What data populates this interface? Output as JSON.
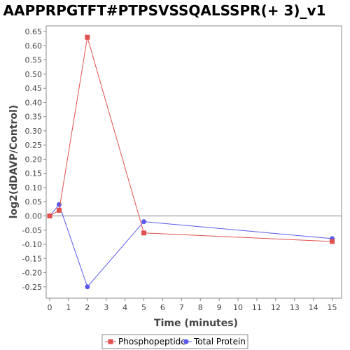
{
  "chart_data": {
    "type": "line",
    "title": "AAPPRPGTFT#PTPSVSSQALSSPR(+ 3)_v1",
    "xlabel": "Time (minutes)",
    "ylabel": "log2(dDAVP/Control)",
    "xlim": [
      0,
      15.5
    ],
    "ylim": [
      -0.29,
      0.67
    ],
    "xticks": [
      0,
      1,
      2,
      3,
      4,
      5,
      6,
      7,
      8,
      9,
      10,
      11,
      12,
      13,
      14,
      15
    ],
    "yticks": [
      0.65,
      0.6,
      0.55,
      0.5,
      0.45,
      0.4,
      0.35,
      0.3,
      0.25,
      0.2,
      0.15,
      0.1,
      0.05,
      0.0,
      -0.05,
      -0.1,
      -0.15,
      -0.2,
      -0.25
    ],
    "ytick_labels": [
      "0.65",
      "0.60",
      "0.55",
      "0.50",
      "0.45",
      "0.40",
      "0.35",
      "0.30",
      "0.25",
      "0.20",
      "0.15",
      "0.10",
      "0.05",
      "0.00",
      "-0.05",
      "-0.10",
      "-0.15",
      "-0.20",
      "-0.25"
    ],
    "grid": false,
    "legend_position": "bottom",
    "zero_line": true,
    "series": [
      {
        "name": "Phosphopeptide",
        "color": "#e05050",
        "marker": "square",
        "x": [
          0,
          0.5,
          2,
          5,
          15
        ],
        "y": [
          0.0,
          0.02,
          0.63,
          -0.06,
          -0.09
        ]
      },
      {
        "name": "Total Protein",
        "color": "#5a5aef",
        "marker": "circle",
        "x": [
          0,
          0.5,
          2,
          5,
          15
        ],
        "y": [
          0.0,
          0.04,
          -0.25,
          -0.02,
          -0.08
        ]
      }
    ]
  }
}
